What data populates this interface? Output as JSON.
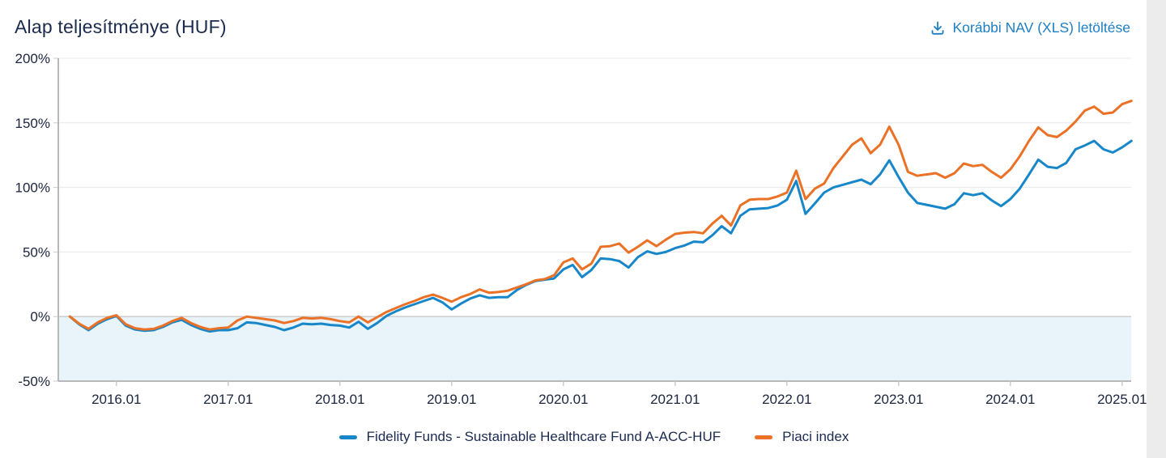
{
  "page": {
    "title": "Alap teljesítménye (HUF)",
    "download_link": {
      "label": "Korábbi NAV (XLS) letöltése",
      "icon": "download-icon",
      "color": "#1e7fc2"
    }
  },
  "colors": {
    "title_text": "#1b2b4d",
    "axis_text": "#1c2540",
    "gridline": "#e8e8e8",
    "zero_line": "#c9c9c9",
    "axis_line": "#b8b8b8",
    "below_zero_band": "#e9f3fa",
    "page_side_strip": "#ececec",
    "fund_line": "#1787c9",
    "index_line": "#ea7125"
  },
  "chart_data": {
    "type": "line",
    "title": "Alap teljesítménye (HUF)",
    "xlabel": "",
    "ylabel": "",
    "ylim": [
      -50,
      200
    ],
    "y_ticks": [
      200,
      150,
      100,
      50,
      0,
      -50
    ],
    "y_tick_labels": [
      "200%",
      "150%",
      "100%",
      "50%",
      "0%",
      "-50%"
    ],
    "x_tick_labels": [
      "2016.01",
      "2017.01",
      "2018.01",
      "2019.01",
      "2020.01",
      "2021.01",
      "2022.01",
      "2023.01",
      "2024.01",
      "2025.01"
    ],
    "x_start": "2015.08",
    "x_end": "2025.02",
    "x_frequency": "monthly",
    "grid": true,
    "legend_position": "bottom",
    "below_zero_band": true,
    "series": [
      {
        "name": "Fidelity Funds - Sustainable Healthcare Fund A-ACC-HUF",
        "color": "#1787c9",
        "values": [
          0,
          -6,
          -10.5,
          -5.5,
          -2,
          0.5,
          -7,
          -10,
          -11,
          -10.5,
          -8,
          -4.5,
          -2.5,
          -6.5,
          -9.5,
          -11.5,
          -10.5,
          -10.5,
          -9,
          -4.5,
          -5,
          -6.5,
          -8,
          -10.5,
          -8.5,
          -5.5,
          -6,
          -5.5,
          -6.5,
          -7,
          -8.5,
          -4,
          -9.5,
          -5,
          0.5,
          4,
          7,
          9.5,
          12,
          14.5,
          11,
          5.5,
          10,
          14,
          16.5,
          14.5,
          15,
          15,
          20.5,
          24.5,
          27.5,
          28.5,
          29.5,
          36.5,
          40,
          30.5,
          36,
          45,
          44.5,
          43,
          38,
          46,
          50.5,
          48.5,
          50,
          53,
          55,
          58,
          57.5,
          63,
          70,
          64.5,
          78,
          83,
          83.5,
          84,
          86,
          90.5,
          105,
          79.5,
          87.5,
          96,
          100,
          102,
          104,
          106,
          102.5,
          110,
          121,
          108,
          96,
          88,
          86.5,
          85,
          83.5,
          87,
          95.5,
          94,
          95.5,
          90,
          85.5,
          91,
          99,
          110,
          121.5,
          116,
          115,
          119,
          129.5,
          132.5,
          136,
          129.5,
          127,
          131,
          136
        ]
      },
      {
        "name": "Piaci index",
        "color": "#ea7125",
        "values": [
          0,
          -5.5,
          -9.5,
          -4.5,
          -1,
          1,
          -6,
          -9,
          -10,
          -9.5,
          -7,
          -3.5,
          -1,
          -5,
          -8,
          -10,
          -9,
          -8.5,
          -3,
          0,
          -1,
          -2,
          -3,
          -5,
          -3.5,
          -1,
          -1.5,
          -1,
          -2,
          -3.5,
          -4.5,
          0,
          -4.5,
          -0.5,
          3.5,
          6.5,
          9.5,
          12,
          15,
          17,
          14.5,
          11.5,
          15,
          17.5,
          21,
          18.5,
          19,
          20,
          22.5,
          25,
          28,
          29,
          32,
          42,
          45,
          36.5,
          41,
          54,
          54.5,
          56.5,
          49.5,
          54,
          59,
          54.5,
          59.5,
          64,
          65,
          65.5,
          64.5,
          72,
          78,
          70.5,
          86,
          90.5,
          91,
          91,
          93,
          96,
          113,
          91,
          99,
          103,
          115,
          124,
          133,
          138,
          126.5,
          133,
          147,
          133,
          112,
          109,
          110,
          111,
          107.5,
          111,
          118.5,
          116.5,
          117.5,
          112,
          107.5,
          114,
          124,
          136,
          146.5,
          140.5,
          139,
          144,
          151,
          159.5,
          162.5,
          157,
          158,
          164.5,
          167
        ]
      }
    ]
  }
}
